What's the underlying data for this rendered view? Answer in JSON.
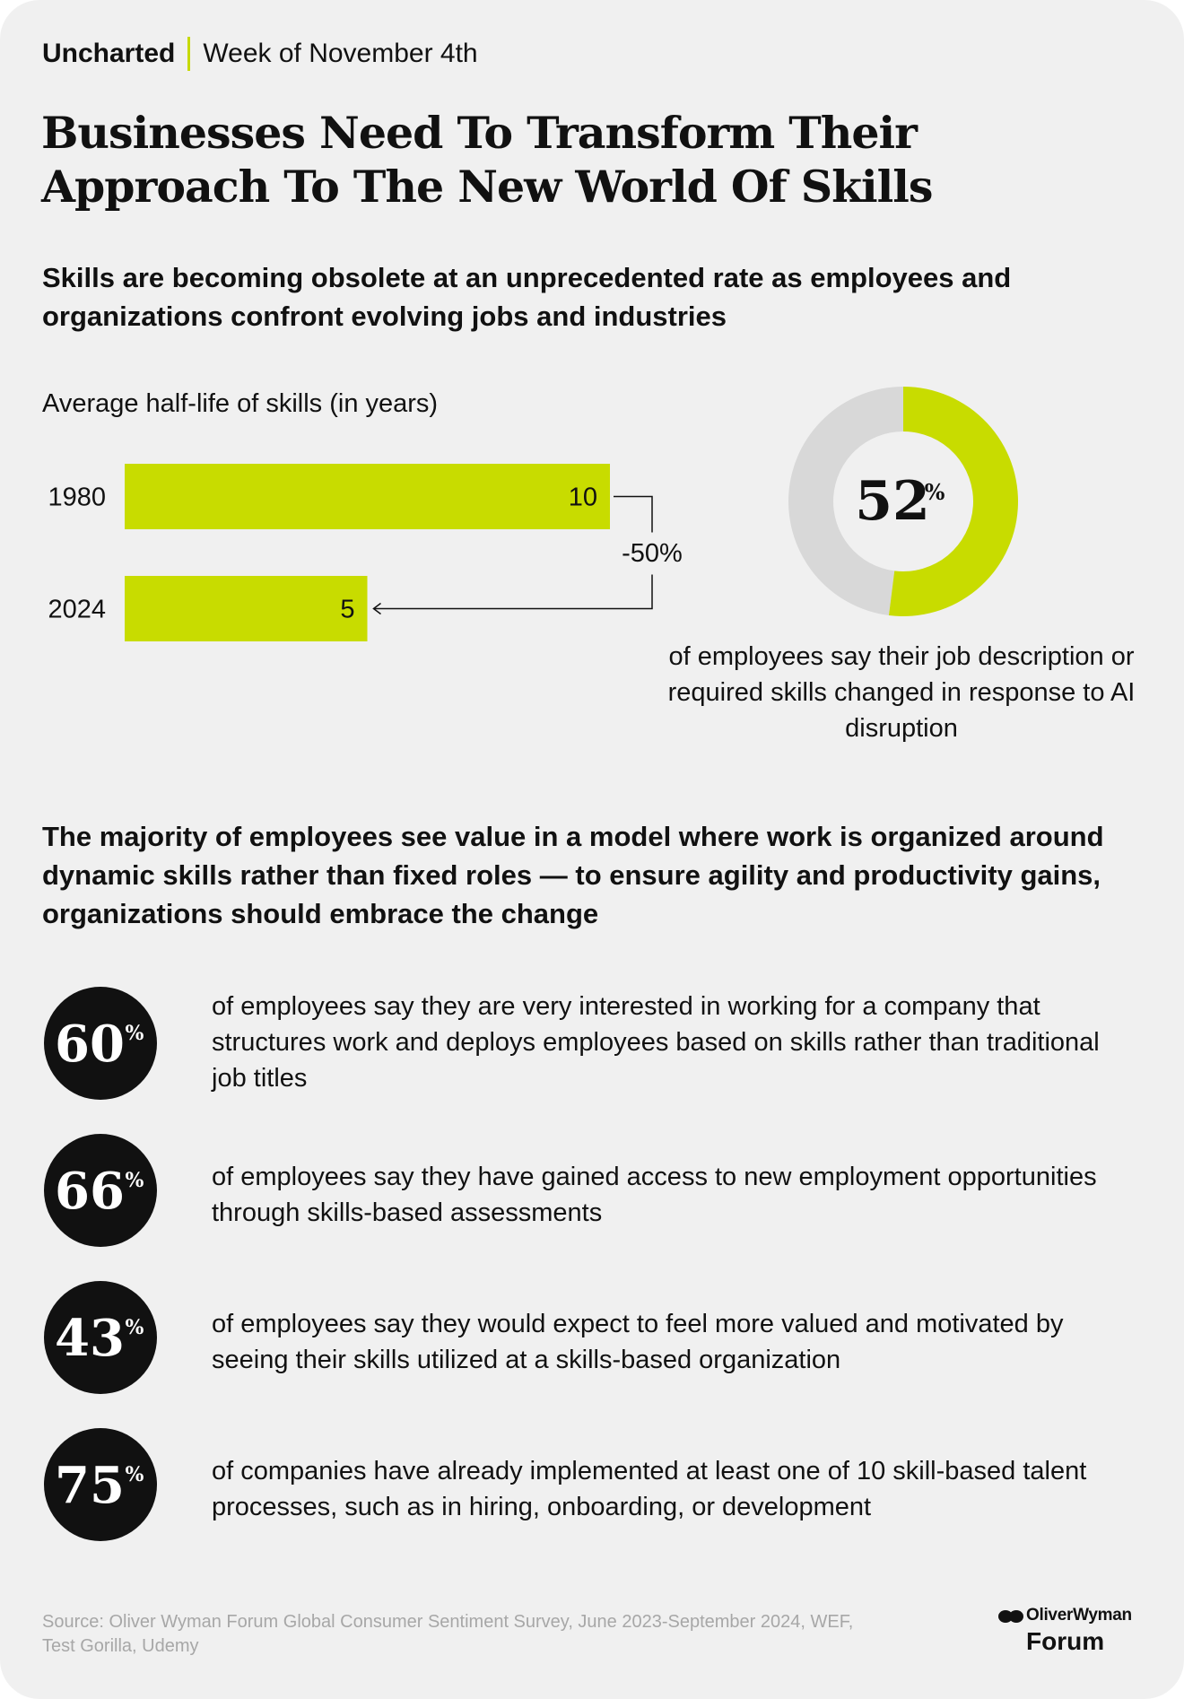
{
  "header": {
    "brand": "Uncharted",
    "week": "Week of November 4th"
  },
  "headline": "Businesses Need To Transform Their Approach To The New World Of Skills",
  "section1": {
    "subhead": "Skills are becoming obsolete at an unprecedented rate as employees and organizations confront evolving jobs and industries"
  },
  "section2": {
    "subhead": "The majority of employees see value in a model where work is organized around dynamic skills rather than fixed roles — to ensure agility and productivity gains, organizations should embrace the change"
  },
  "stats": [
    {
      "value": "60",
      "unit": "%",
      "text": "of employees say they are very interested in working for a company that structures work and deploys employees based on skills rather than traditional job titles"
    },
    {
      "value": "66",
      "unit": "%",
      "text": "of employees say they have gained access to new employment opportunities through skills-based assessments"
    },
    {
      "value": "43",
      "unit": "%",
      "text": "of employees say they would expect to feel more valued and motivated by seeing their skills utilized at a skills-based organization"
    },
    {
      "value": "75",
      "unit": "%",
      "text": "of companies have already implemented at least one of 10 skill-based talent processes, such as in hiring, onboarding, or development"
    }
  ],
  "footer": {
    "source": "Source: Oliver Wyman Forum Global Consumer Sentiment Survey, June 2023-September 2024, WEF, Test Gorilla, Udemy",
    "logo_top": "OliverWyman",
    "logo_bottom": "Forum"
  },
  "chart_data": [
    {
      "type": "bar",
      "orientation": "horizontal",
      "title": "Average half-life of skills (in years)",
      "categories": [
        "1980",
        "2024"
      ],
      "values": [
        10,
        5
      ],
      "value_labels": [
        "10",
        "5"
      ],
      "annotation": "-50%",
      "xlim": [
        0,
        10
      ],
      "color": "#c8dc00"
    },
    {
      "type": "pie",
      "style": "donut",
      "value": 52,
      "value_label": "52",
      "unit": "%",
      "caption": "of employees say their job description or required skills changed in response to AI disruption",
      "colors": {
        "value": "#c8dc00",
        "remainder": "#d8d8d8"
      }
    }
  ],
  "colors": {
    "accent": "#c8dc00",
    "background": "#f0f0f0",
    "text": "#111111",
    "muted": "#a7a7a7"
  }
}
